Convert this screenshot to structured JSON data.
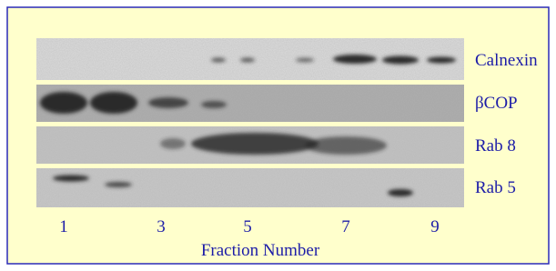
{
  "lanes": {
    "labels": [
      "Calnexin",
      "βCOP",
      "Rab 8",
      "Rab 5"
    ]
  },
  "x_axis": {
    "ticks": [
      "1",
      "3",
      "5",
      "7",
      "9"
    ],
    "title": "Fraction Number"
  }
}
